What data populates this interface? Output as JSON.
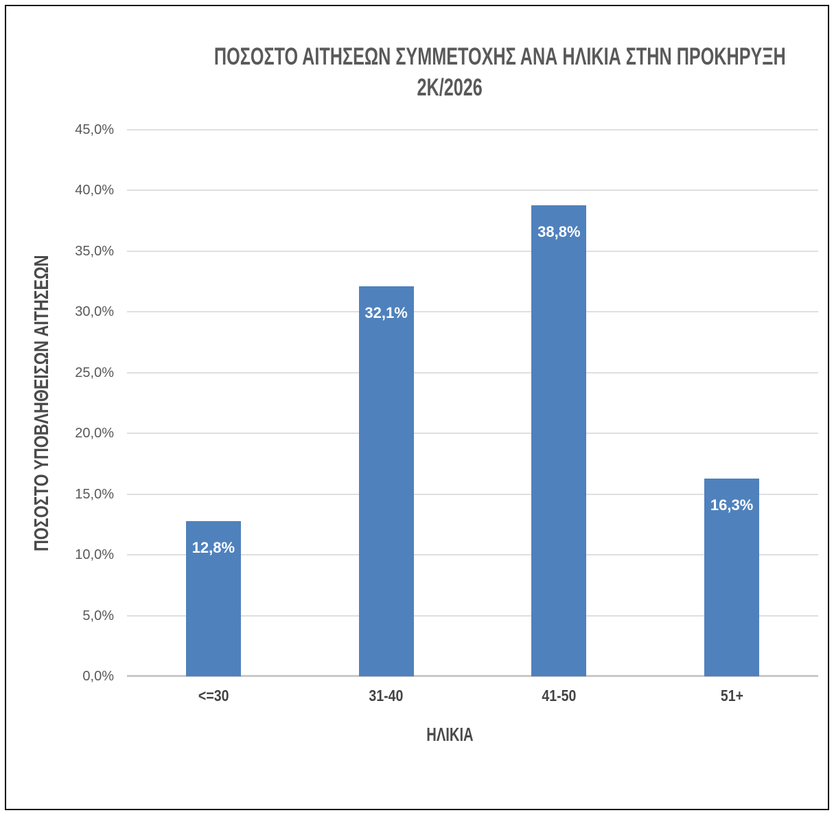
{
  "chart_data": {
    "type": "bar",
    "title": "ΠΟΣΟΣΤΟ ΑΙΤΗΣΕΩΝ ΣΥΜΜΕΤΟΧΗΣ ΑΝΑ ΗΛΙΚΙΑ ΣΤΗΝ ΠΡΟΚΗΡΥΞΗ 2Κ/2026",
    "title_lines": [
      "ΠΟΣΟΣΤΟ ΑΙΤΗΣΕΩΝ ΣΥΜΜΕΤΟΧΗΣ ΑΝΑ ΗΛΙΚΙΑ ΣΤΗΝ ΠΡΟΚΗΡΥΞΗ",
      "2Κ/2026"
    ],
    "categories": [
      "<=30",
      "31-40",
      "41-50",
      "51+"
    ],
    "values": [
      12.8,
      32.1,
      38.8,
      16.3
    ],
    "value_labels": [
      "12,8%",
      "32,1%",
      "38,8%",
      "16,3%"
    ],
    "xlabel": "ΗΛΙΚΙΑ",
    "ylabel": "ΠΟΣΟΣΤΟ ΥΠΟΒΛΗΘΕΙΣΩΝ ΑΙΤΗΣΕΩΝ",
    "ylim": [
      0,
      45
    ],
    "ytick_step": 5,
    "ytick_labels": [
      "0,0%",
      "5,0%",
      "10,0%",
      "15,0%",
      "20,0%",
      "25,0%",
      "30,0%",
      "35,0%",
      "40,0%",
      "45,0%"
    ],
    "grid": true,
    "legend": "none",
    "bar_color": "#4f81bd",
    "data_label_color": "#ffffff",
    "axis_text_color": "#595959",
    "gridline_color": "#dfdfdf"
  }
}
